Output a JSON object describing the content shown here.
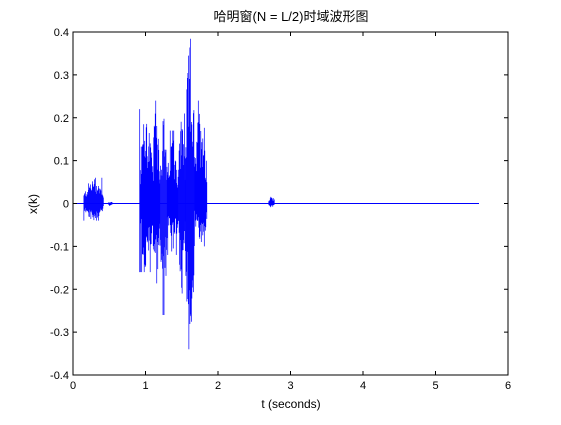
{
  "chart_data": {
    "type": "line",
    "title": "哈明窗(N = L/2)时域波形图",
    "xlabel": "t (seconds)",
    "ylabel": "x(k)",
    "xlim": [
      0,
      6
    ],
    "ylim": [
      -0.4,
      0.4
    ],
    "xticks": [
      0,
      1,
      2,
      3,
      4,
      5,
      6
    ],
    "yticks": [
      -0.4,
      -0.3,
      -0.2,
      -0.1,
      0,
      0.1,
      0.2,
      0.3,
      0.4
    ],
    "grid": false,
    "line_color": "#0000ff",
    "series": [
      {
        "x_range": [
          0,
          5.6
        ],
        "bursts": [
          {
            "start": 0.15,
            "end": 0.42,
            "pos": 0.06,
            "neg": -0.04
          },
          {
            "start": 0.48,
            "end": 0.55,
            "pos": 0.005,
            "neg": -0.005
          },
          {
            "start": 0.92,
            "end": 1.1,
            "pos": 0.22,
            "neg": -0.16
          },
          {
            "start": 1.1,
            "end": 1.2,
            "pos": 0.24,
            "neg": -0.19
          },
          {
            "start": 1.2,
            "end": 1.3,
            "pos": 0.21,
            "neg": -0.26
          },
          {
            "start": 1.3,
            "end": 1.45,
            "pos": 0.17,
            "neg": -0.12
          },
          {
            "start": 1.45,
            "end": 1.55,
            "pos": 0.21,
            "neg": -0.21
          },
          {
            "start": 1.55,
            "end": 1.68,
            "pos": 0.39,
            "neg": -0.34
          },
          {
            "start": 1.68,
            "end": 1.85,
            "pos": 0.24,
            "neg": -0.1
          },
          {
            "start": 2.7,
            "end": 2.78,
            "pos": 0.02,
            "neg": -0.01
          }
        ]
      }
    ]
  }
}
